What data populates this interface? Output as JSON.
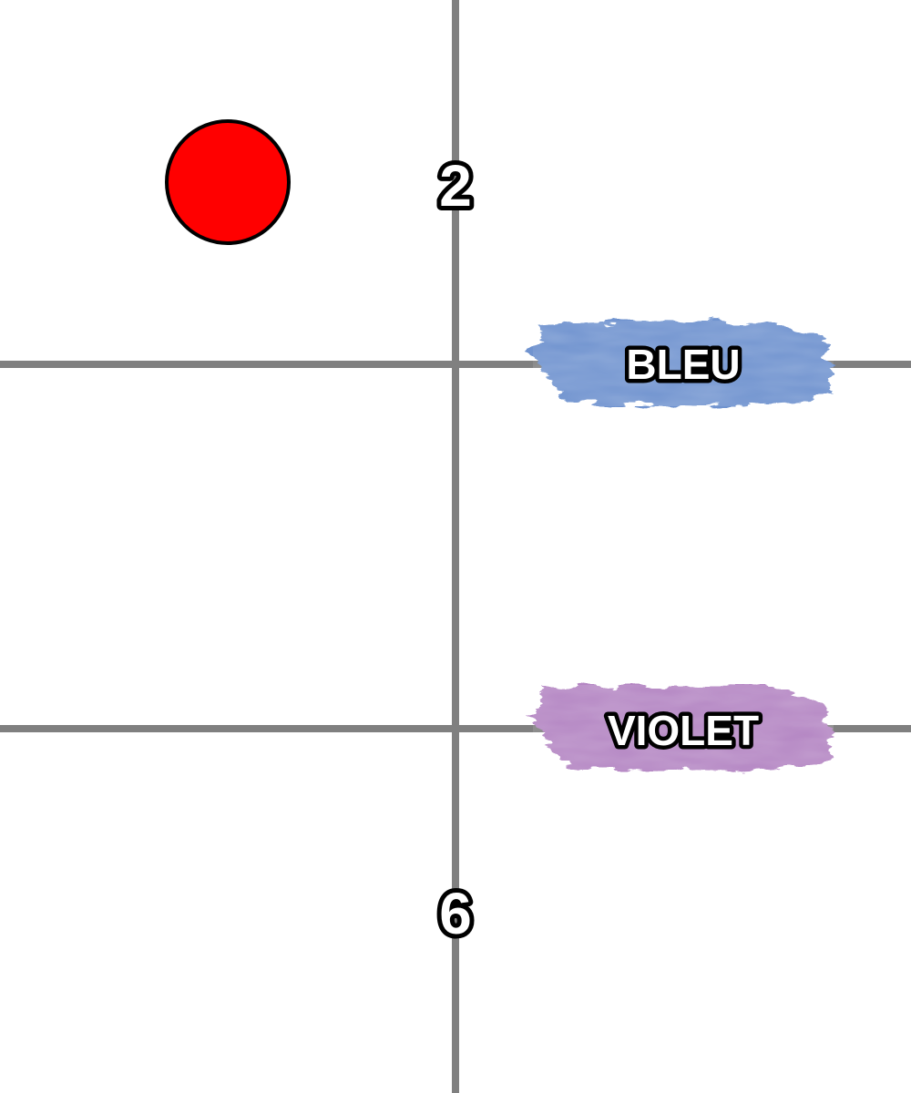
{
  "grid": {
    "line_color": "#808080"
  },
  "markers": [
    {
      "name": "red-circle",
      "color": "#ff0000",
      "outline": "#000000"
    }
  ],
  "numbers": {
    "top": "2",
    "bottom": "6"
  },
  "labels": {
    "blue": {
      "text": "BLEU",
      "color": "#6f93cf"
    },
    "violet": {
      "text": "VIOLET",
      "color": "#b486c3"
    }
  }
}
